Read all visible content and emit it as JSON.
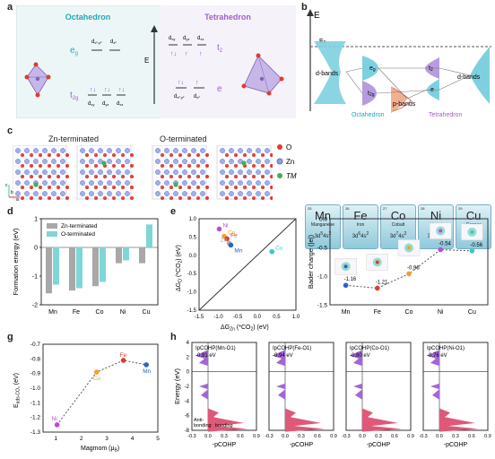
{
  "panel_letters": [
    "a",
    "b",
    "c",
    "d",
    "e",
    "f",
    "g",
    "h"
  ],
  "a": {
    "octahedron": "Octahedron",
    "tetrahedron": "Tetrahedron",
    "E": "E",
    "eg": "e",
    "eg_sub": "g",
    "t2g": "t",
    "t2g_sub": "2g",
    "t2": "t",
    "t2_sub": "2",
    "e": "e",
    "oct_levels": [
      "d",
      "x²-y²",
      "d",
      "z²",
      "d",
      "xy",
      "d",
      "yz",
      "d",
      "xz"
    ],
    "tet_levels": [
      "d",
      "xy",
      "d",
      "yz",
      "d",
      "xz",
      "d",
      "x²-y²",
      "d",
      "z²"
    ]
  },
  "b": {
    "E": "E",
    "EF": "E",
    "EF_sub": "F",
    "dbands": "d-bands",
    "eg": "e",
    "eg_sub": "g",
    "t2g": "t",
    "t2g_sub": "2g",
    "pbands": "p-bands",
    "t2": "t",
    "t2_sub": "2",
    "e": "e",
    "octahedron": "Octahedron",
    "tetrahedron": "Tetrahedron"
  },
  "c": {
    "zn_terminated": "Zn-terminated",
    "o_terminated": "O-terminated",
    "legend": [
      "O",
      "Zn",
      "TM"
    ],
    "axes": [
      "c",
      "b",
      "a"
    ],
    "elements": [
      {
        "num": "25",
        "sym": "Mn",
        "name": "Manganese",
        "cfg": "3d",
        "cfg_e": "5",
        "cfg2": "4s",
        "cfg2_e": "2"
      },
      {
        "num": "26",
        "sym": "Fe",
        "name": "Iron",
        "cfg": "3d",
        "cfg_e": "6",
        "cfg2": "4s",
        "cfg2_e": "2"
      },
      {
        "num": "27",
        "sym": "Co",
        "name": "Cobalt",
        "cfg": "3d",
        "cfg_e": "7",
        "cfg2": "4s",
        "cfg2_e": "2"
      },
      {
        "num": "28",
        "sym": "Ni",
        "name": "Nickel",
        "cfg": "3d",
        "cfg_e": "8",
        "cfg2": "4s",
        "cfg2_e": "2"
      },
      {
        "num": "29",
        "sym": "Cu",
        "name": "Copper",
        "cfg": "3d",
        "cfg_e": "10",
        "cfg2": "4s",
        "cfg2_e": "1"
      }
    ]
  },
  "chart_data": [
    {
      "panel": "d",
      "type": "bar",
      "categories": [
        "Mn",
        "Fe",
        "Co",
        "Ni",
        "Cu"
      ],
      "series": [
        {
          "name": "Zn-terminated",
          "color": "#a8a8a8",
          "values": [
            -1.6,
            -1.5,
            -1.35,
            -0.55,
            -0.55
          ]
        },
        {
          "name": "O-terminated",
          "color": "#7fd6d6",
          "values": [
            -1.3,
            -1.42,
            -1.2,
            -0.45,
            0.8
          ]
        }
      ],
      "ylabel": "Formation energy (eV)",
      "ylim": [
        -2,
        1
      ],
      "yticks": [
        "1",
        "0",
        "-1",
        "-2"
      ],
      "legend": "top-left"
    },
    {
      "panel": "e",
      "type": "scatter",
      "xlabel": "ΔG",
      "xlabel_sub": "Zn",
      "xlabel_tail": " (*CO",
      "xlabel_tail_sub": "2",
      "xlabel_end": ") (eV)",
      "ylabel": "ΔG",
      "ylabel_sub": "O",
      "ylabel_tail": " (*CO",
      "ylabel_tail_sub": "2",
      "ylabel_end": ") (eV)",
      "xlim": [
        -1.5,
        1.0
      ],
      "ylim": [
        -1.5,
        1.0
      ],
      "xticks": [
        "-1.5",
        "-1.0",
        "-0.5",
        "0.0",
        "0.5",
        "1.0"
      ],
      "yticks": [
        "1.0",
        "0.5",
        "0.0",
        "-0.5",
        "-1.0",
        "-1.5"
      ],
      "points": [
        {
          "label": "Ni",
          "x": -0.98,
          "y": 0.72,
          "color": "#b34fd8"
        },
        {
          "label": "Co",
          "x": -0.85,
          "y": 0.52,
          "color": "#f0a030"
        },
        {
          "label": "Fe",
          "x": -0.78,
          "y": 0.45,
          "color": "#e23b2e"
        },
        {
          "label": "Zn",
          "x": -0.72,
          "y": 0.33,
          "color": "#b0b0b0"
        },
        {
          "label": "Mn",
          "x": -0.68,
          "y": 0.28,
          "color": "#2e5fd0"
        },
        {
          "label": "Cu",
          "x": 0.38,
          "y": 0.1,
          "color": "#40c8c0"
        }
      ]
    },
    {
      "panel": "f",
      "type": "line",
      "categories": [
        "Mn",
        "Fe",
        "Co",
        "Ni",
        "Cu"
      ],
      "ylabel": "Bader charge (|e|)",
      "ylim": [
        -1.5,
        0
      ],
      "yticks": [
        "0.0",
        "-0.5",
        "-1.0",
        "-1.5"
      ],
      "values": [
        -1.16,
        -1.21,
        -0.96,
        -0.54,
        -0.56
      ],
      "labels": [
        "-1.16",
        "-1.21",
        "-0.96",
        "-0.54",
        "-0.56"
      ],
      "colors": [
        "#2e5fd0",
        "#e23b2e",
        "#f0a030",
        "#b34fd8",
        "#40c8c0"
      ]
    },
    {
      "panel": "g",
      "type": "scatter",
      "xlabel": "Magmom (μ",
      "xlabel_sub": "B",
      "xlabel_end": ")",
      "ylabel": "E",
      "ylabel_sub": "ads-CO₂",
      "ylabel_end": " (eV)",
      "xlim": [
        0.5,
        5
      ],
      "ylim": [
        -1.3,
        -0.7
      ],
      "xticks": [
        "1",
        "2",
        "3",
        "4",
        "5"
      ],
      "yticks": [
        "-0.7",
        "-0.8",
        "-0.9",
        "-1.0",
        "-1.1",
        "-1.2",
        "-1.3"
      ],
      "points": [
        {
          "label": "Ni",
          "x": 1.05,
          "y": -1.25,
          "color": "#b34fd8"
        },
        {
          "label": "Co",
          "x": 2.6,
          "y": -0.89,
          "color": "#f0a030"
        },
        {
          "label": "Fe",
          "x": 3.65,
          "y": -0.81,
          "color": "#e23b2e"
        },
        {
          "label": "Mn",
          "x": 4.55,
          "y": -0.84,
          "color": "#2e5fd0"
        }
      ]
    }
  ],
  "h": {
    "ylabel": "Energy (eV)",
    "yticks": [
      "4",
      "2",
      "0",
      "-2",
      "-4",
      "-6",
      "-8"
    ],
    "xticks": [
      "-0.3",
      "0.0",
      "0.3",
      "0.6",
      "0.9"
    ],
    "xlabel": "-pCOHP",
    "antibonding": "Anti-",
    "antibonding2": "bonding",
    "bonding": "bonding",
    "panels": [
      {
        "label": "IpCOHP(Mn-O1)",
        "value": "-0.81 eV"
      },
      {
        "label": "IpCOHP(Fe-O1)",
        "value": "-0.94 eV"
      },
      {
        "label": "IpCOHP(Co-O1)",
        "value": "-0.80 eV"
      },
      {
        "label": "IpCOHP(Ni-O1)",
        "value": "-0.76 eV"
      }
    ]
  }
}
